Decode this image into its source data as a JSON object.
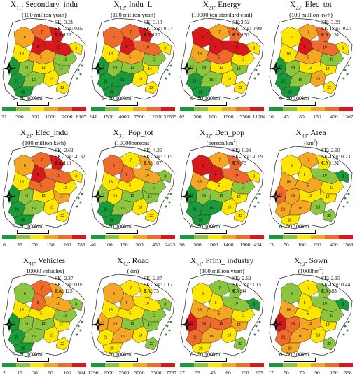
{
  "panels": [
    {
      "code_main": "X",
      "code_sub": "11",
      "name": ". Secondary_indu",
      "unit": "(100 million yuan)",
      "unit_sup": "",
      "unit_end": "",
      "sk": "SK: 3.21",
      "sklog": "SK-Log: 0.03",
      "ca": "CA:122",
      "ticks": [
        "71",
        "300",
        "500",
        "1000",
        "2000",
        "8167"
      ]
    },
    {
      "code_main": "X",
      "code_sub": "12",
      "name": ". Indu_L",
      "unit": "(100 million yuan)",
      "unit_sup": "",
      "unit_end": "",
      "sk": "SK: 3.18",
      "sklog": "SK-Log:-0.14",
      "ca": "CA:120",
      "ticks": [
        "241",
        "1500",
        "4000",
        "7500",
        "12000",
        "32655"
      ]
    },
    {
      "code_main": "X",
      "code_sub": "21",
      "name": ". Energy",
      "unit": "(10000 ton standard coal)",
      "unit_sup": "",
      "unit_end": "",
      "sk": "SK:3.52",
      "sklog": "SK-Log:-0.09",
      "ca": "CA:150",
      "ticks": [
        "62",
        "300",
        "600",
        "1500",
        "3500",
        "11084"
      ]
    },
    {
      "code_main": "X",
      "code_sub": "22",
      "name": ". Elec_tot",
      "unit": "(100 million kwh)",
      "unit_sup": "",
      "unit_end": "",
      "sk": "SK: 3.39",
      "sklog": "SK-Log: -0.01",
      "ca": "CA: 131",
      "ticks": [
        "10",
        "45",
        "80",
        "150",
        "400",
        "1367"
      ]
    },
    {
      "code_main": "X",
      "code_sub": "23",
      "name": ". Elec_indu",
      "unit": "(100 million kwh)",
      "unit_sup": "",
      "unit_end": "",
      "sk": "SK: 2.63",
      "sklog": "SK-Log: -0.32",
      "ca": "CA:110",
      "ticks": [
        "6",
        "35",
        "70",
        "150",
        "260",
        "785"
      ]
    },
    {
      "code_main": "X",
      "code_sub": "31",
      "name": ". Pop_tot",
      "unit": "(10000persons)",
      "unit_sup": "",
      "unit_end": "",
      "sk": "SK: 4.36",
      "sklog": "SK-Log: 1.15",
      "ca": "CA: 167",
      "ticks": [
        "46",
        "100",
        "150",
        "300",
        "450",
        "2425"
      ]
    },
    {
      "code_main": "X",
      "code_sub": "32",
      "name": ". Den_pop",
      "unit": "(person/km",
      "unit_sup": "2",
      "unit_end": ")",
      "sk": "SK: 0.99",
      "sklog": "SK-Log: -0.69",
      "ca": "CA:73",
      "ticks": [
        "98",
        "500",
        "1000",
        "1400",
        "1900",
        "4341"
      ]
    },
    {
      "code_main": "X",
      "code_sub": "33",
      "name": ". Area",
      "unit": "(km",
      "unit_sup": "2",
      "unit_end": ")",
      "sk": "SK: 2.90",
      "sklog": "SK-Log: 0.23",
      "ca": "CA: 131",
      "ticks": [
        "13",
        "50",
        "100",
        "200",
        "400",
        "1563"
      ]
    },
    {
      "code_main": "X",
      "code_sub": "41",
      "name": ". Vehicles",
      "unit": "(10000 vehicles)",
      "unit_sup": "",
      "unit_end": "",
      "sk": "SK: 2.27",
      "sklog": "SK-Log: 0.05",
      "ca": "CA: 125",
      "ticks": [
        "2",
        "15",
        "30",
        "60",
        "100",
        "304"
      ]
    },
    {
      "code_main": "X",
      "code_sub": "42",
      "name": ". Road",
      "unit": "(km)",
      "unit_sup": "",
      "unit_end": "",
      "sk": "SK: 2.87",
      "sklog": "SK-Log: 1.17",
      "ca": "CA: 75",
      "ticks": [
        "1296",
        "2000",
        "2500",
        "3000",
        "3500",
        "17797"
      ]
    },
    {
      "code_main": "X",
      "code_sub": "51",
      "name": ". Prim_ industry",
      "unit": "(100 million yuan)",
      "unit_sup": "",
      "unit_end": "",
      "sk": "SK: 2.62",
      "sklog": "SK-Log: 1.15",
      "ca": "CA:64",
      "ticks": [
        "27",
        "35",
        "45",
        "60",
        "200",
        "205"
      ]
    },
    {
      "code_main": "X",
      "code_sub": "52",
      "name": ". Sown",
      "unit": "(1000hm",
      "unit_sup": "2",
      "unit_end": ")",
      "sk": "SK: 2.15",
      "sklog": "SK-Log: 0.44",
      "ca": "CA: 83",
      "ticks": [
        "17",
        "50",
        "70",
        "90",
        "150",
        "358"
      ]
    }
  ],
  "scale_label": "0   50 100km",
  "legend_colors": [
    "#1a9a3a",
    "#8cc63f",
    "#ffe600",
    "#f5a623",
    "#ee6b2d",
    "#d7191c"
  ],
  "compass_icon": "north-arrow-icon"
}
